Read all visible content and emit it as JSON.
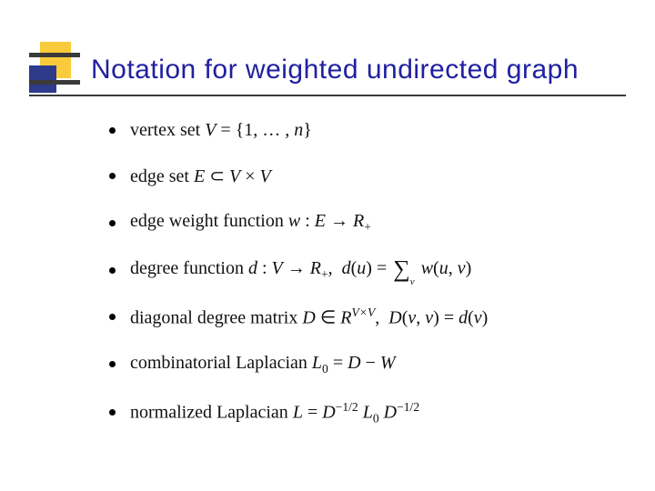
{
  "slide": {
    "title": "Notation for weighted undirected graph",
    "title_color": "#2020a0",
    "title_fontsize": 30,
    "background": "#ffffff",
    "rule_color": "#3a3a3a",
    "decor": {
      "yellow": "#f9cb3a",
      "blue": "#2e3a8c",
      "bar": "#3a3a3a"
    },
    "bullets": [
      {
        "html": "vertex set <span class='math'>V</span> <span class='rm'>=</span> <span class='rm'>{1, … , </span><span class='math'>n</span><span class='rm'>}</span>"
      },
      {
        "html": "edge set <span class='math'>E</span> <span class='rm'>⊂</span> <span class='math'>V</span> <span class='rm'>×</span> <span class='math'>V</span>"
      },
      {
        "html": "edge weight function <span class='math'>w</span> <span class='rm'>:</span> <span class='math'>E</span> <span class='rm'>→</span> <span class='math'>R</span><span class='sub'>+</span>"
      },
      {
        "html": "degree function <span class='math'>d</span> <span class='rm'>:</span> <span class='math'>V</span> <span class='rm'>→</span> <span class='math'>R</span><span class='sub'>+</span><span class='rm'>,&nbsp;&nbsp;</span><span class='math'>d</span><span class='rm'>(</span><span class='math'>u</span><span class='rm'>)</span> <span class='rm'>=</span> <span class='bigsum'>∑</span><span class='sumsub'>v</span> <span class='math'>w</span><span class='rm'>(</span><span class='math'>u</span><span class='rm'>,</span> <span class='math'>v</span><span class='rm'>)</span>"
      },
      {
        "html": "diagonal degree matrix <span class='math'>D</span> <span class='rm'>∈</span> <span class='math'>R</span><span class='sup'>V×V</span><span class='rm'>,&nbsp;&nbsp;</span><span class='math'>D</span><span class='rm'>(</span><span class='math'>v</span><span class='rm'>,</span> <span class='math'>v</span><span class='rm'>)</span> <span class='rm'>=</span> <span class='math'>d</span><span class='rm'>(</span><span class='math'>v</span><span class='rm'>)</span>"
      },
      {
        "html": "combinatorial Laplacian <span class='math'>L</span><span class='sub'>0</span> <span class='rm'>=</span> <span class='math'>D</span> <span class='rm'>−</span> <span class='math'>W</span>"
      },
      {
        "html": "normalized Laplacian <span class='math'>L</span> <span class='rm'>=</span> <span class='math'>D</span><span class='suprm'>−1/2</span> <span class='math'>L</span><span class='sub'>0</span> <span class='math'>D</span><span class='suprm'>−1/2</span>"
      }
    ],
    "bullet_fontsize": 20,
    "bullet_color": "#111111",
    "bullet_marker_color": "#000000"
  }
}
